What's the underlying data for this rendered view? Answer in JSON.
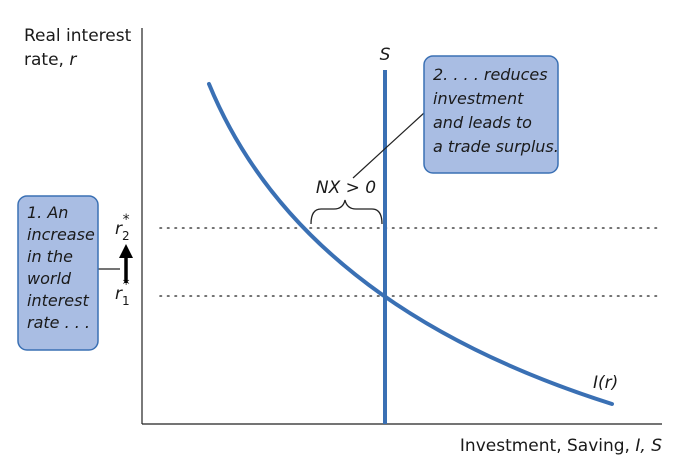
{
  "axes": {
    "y_label_line1": "Real interest",
    "y_label_line2": "rate, ",
    "y_label_var": "r",
    "x_label": "Investment, Saving, ",
    "x_label_var": "I, S"
  },
  "curves": {
    "saving_label": "S",
    "investment_label": "I(r)"
  },
  "rates": {
    "r2_base": "r",
    "r2_sub": "2",
    "r2_sup": "*",
    "r1_base": "r",
    "r1_sub": "1",
    "r1_sup": "*"
  },
  "nx_label": "NX > 0",
  "box_left": {
    "lines": [
      "1. An",
      "increase",
      "in the",
      "world",
      "interest",
      "rate . . ."
    ]
  },
  "box_right": {
    "lines": [
      "2. . . . reduces",
      "investment",
      "and leads to",
      "a trade surplus."
    ]
  },
  "colors": {
    "curve": "#3a70b4",
    "box_fill": "#a9bde3",
    "box_stroke": "#3a70b4",
    "axis": "#222222"
  }
}
